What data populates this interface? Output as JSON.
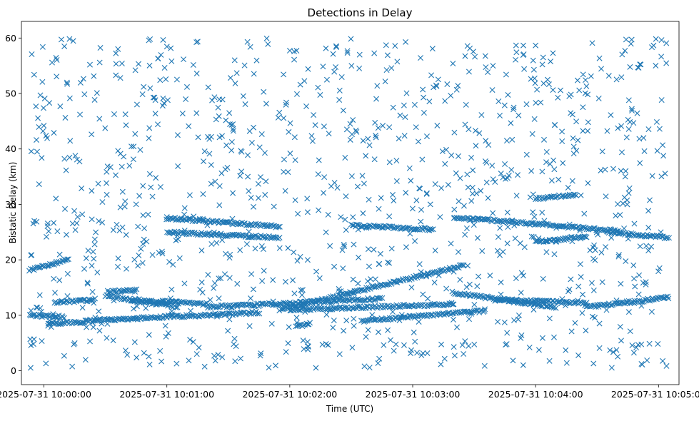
{
  "chart_data": {
    "type": "scatter",
    "title": "Detections in Delay",
    "xlabel": "Time (UTC)",
    "ylabel": "Bistatic Delay (km)",
    "x_axis": "datetime",
    "xlim": [
      "2025-07-31 09:59:49",
      "2025-07-31 10:05:10"
    ],
    "ylim": [
      -2.5,
      63
    ],
    "x_ticks": [
      "2025-07-31 10:00:00",
      "2025-07-31 10:01:00",
      "2025-07-31 10:02:00",
      "2025-07-31 10:03:00",
      "2025-07-31 10:04:00",
      "2025-07-31 10:05:00"
    ],
    "y_ticks": [
      0,
      10,
      20,
      30,
      40,
      50,
      60
    ],
    "marker": "x",
    "color": "#1f77b4",
    "grid": false,
    "legend": "none",
    "time_range": [
      "2025-07-31 09:59:53",
      "2025-07-31 10:05:04"
    ],
    "noise_delay_range": [
      0.5,
      60
    ],
    "tracks": [
      {
        "start": [
          "2025-07-31 09:59:53",
          18.2
        ],
        "end": [
          "2025-07-31 10:00:12",
          20.0
        ]
      },
      {
        "start": [
          "2025-07-31 09:59:53",
          10.0
        ],
        "end": [
          "2025-07-31 10:00:10",
          9.7
        ]
      },
      {
        "start": [
          "2025-07-31 10:00:05",
          12.3
        ],
        "end": [
          "2025-07-31 10:00:25",
          12.8
        ]
      },
      {
        "start": [
          "2025-07-31 10:00:02",
          8.5
        ],
        "end": [
          "2025-07-31 10:00:20",
          8.8
        ]
      },
      {
        "start": [
          "2025-07-31 10:00:31",
          14.2
        ],
        "end": [
          "2025-07-31 10:00:45",
          14.6
        ]
      },
      {
        "start": [
          "2025-07-31 10:00:20",
          9.0
        ],
        "end": [
          "2025-07-31 10:01:45",
          10.5
        ]
      },
      {
        "start": [
          "2025-07-31 10:00:30",
          13.5
        ],
        "end": [
          "2025-07-31 10:01:05",
          11.5
        ]
      },
      {
        "start": [
          "2025-07-31 10:00:42",
          12.8
        ],
        "end": [
          "2025-07-31 10:01:20",
          12.0
        ]
      },
      {
        "start": [
          "2025-07-31 10:01:00",
          27.5
        ],
        "end": [
          "2025-07-31 10:01:55",
          26.0
        ]
      },
      {
        "start": [
          "2025-07-31 10:01:00",
          25.0
        ],
        "end": [
          "2025-07-31 10:01:55",
          24.0
        ]
      },
      {
        "start": [
          "2025-07-31 10:01:20",
          11.5
        ],
        "end": [
          "2025-07-31 10:02:45",
          13.0
        ]
      },
      {
        "start": [
          "2025-07-31 10:01:55",
          11.0
        ],
        "end": [
          "2025-07-31 10:03:25",
          19.0
        ]
      },
      {
        "start": [
          "2025-07-31 10:02:00",
          11.0
        ],
        "end": [
          "2025-07-31 10:03:20",
          12.0
        ]
      },
      {
        "start": [
          "2025-07-31 10:02:03",
          8.0
        ],
        "end": [
          "2025-07-31 10:02:10",
          8.5
        ]
      },
      {
        "start": [
          "2025-07-31 10:02:35",
          9.0
        ],
        "end": [
          "2025-07-31 10:03:35",
          10.8
        ]
      },
      {
        "start": [
          "2025-07-31 10:02:30",
          26.2
        ],
        "end": [
          "2025-07-31 10:03:10",
          25.5
        ]
      },
      {
        "start": [
          "2025-07-31 10:03:20",
          27.7
        ],
        "end": [
          "2025-07-31 10:04:40",
          25.2
        ]
      },
      {
        "start": [
          "2025-07-31 10:03:20",
          14.0
        ],
        "end": [
          "2025-07-31 10:04:10",
          11.5
        ]
      },
      {
        "start": [
          "2025-07-31 10:03:40",
          12.8
        ],
        "end": [
          "2025-07-31 10:04:25",
          12.2
        ]
      },
      {
        "start": [
          "2025-07-31 10:04:00",
          23.3
        ],
        "end": [
          "2025-07-31 10:04:25",
          24.2
        ]
      },
      {
        "start": [
          "2025-07-31 10:04:00",
          31.0
        ],
        "end": [
          "2025-07-31 10:04:20",
          31.8
        ]
      },
      {
        "start": [
          "2025-07-31 10:04:25",
          11.5
        ],
        "end": [
          "2025-07-31 10:05:05",
          13.2
        ]
      },
      {
        "start": [
          "2025-07-31 10:04:35",
          25.0
        ],
        "end": [
          "2025-07-31 10:05:05",
          24.0
        ]
      }
    ]
  }
}
